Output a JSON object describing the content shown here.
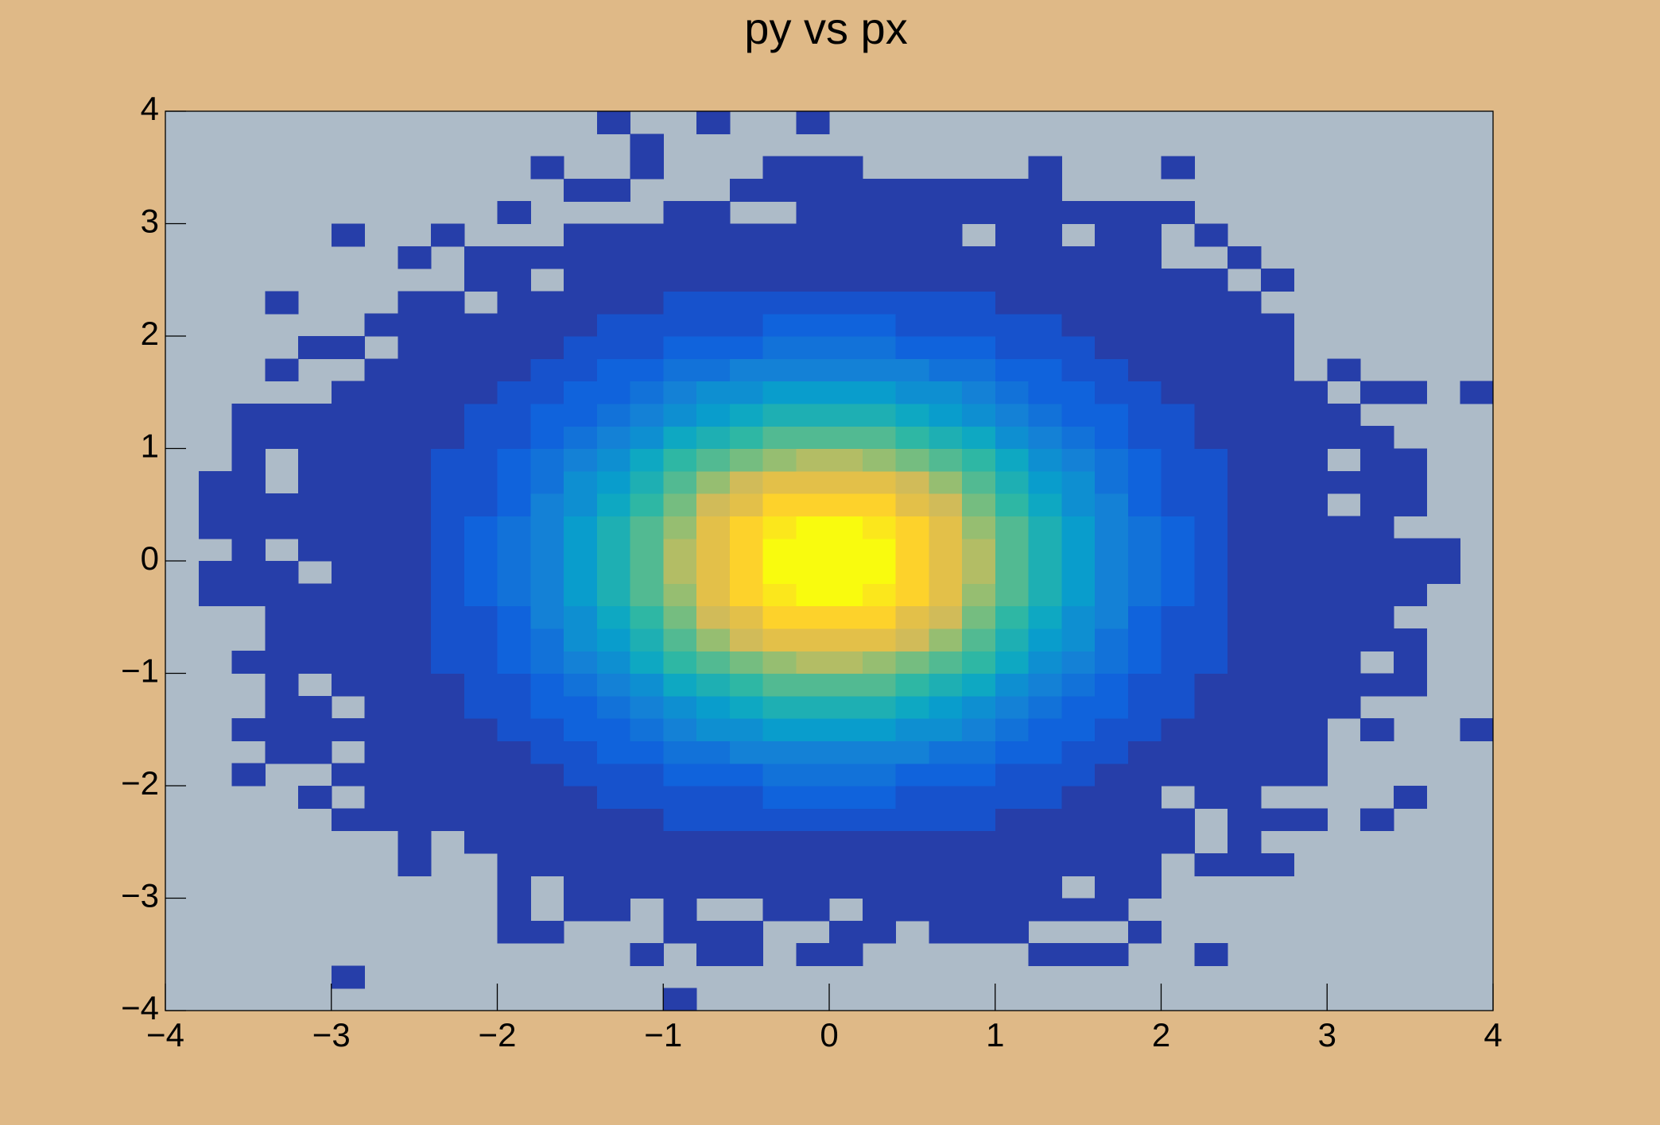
{
  "chart_data": {
    "type": "histogram2d",
    "title": "py vs px",
    "xlim": [
      -4,
      4
    ],
    "ylim": [
      -4,
      4
    ],
    "xticks": [
      {
        "value": -4,
        "label": "−4"
      },
      {
        "value": -3,
        "label": "−3"
      },
      {
        "value": -2,
        "label": "−2"
      },
      {
        "value": -1,
        "label": "−1"
      },
      0,
      1,
      2,
      3,
      4
    ],
    "yticks": [
      {
        "value": -4,
        "label": "−4"
      },
      {
        "value": -3,
        "label": "−3"
      },
      {
        "value": -2,
        "label": "−2"
      },
      {
        "value": -1,
        "label": "−1"
      },
      0,
      1,
      2,
      3,
      4
    ],
    "contours": 20,
    "palette": [
      "#352a87",
      "#0f5cdd",
      "#1481d6",
      "#06a4ca",
      "#2eb7a4",
      "#87bf77",
      "#d1bb59",
      "#fec832",
      "#f9fb0e"
    ],
    "z": [
      [
        0,
        0,
        0,
        0,
        0,
        0,
        0,
        0,
        0,
        0,
        0,
        0,
        0,
        0,
        0,
        1,
        0,
        0,
        0,
        0,
        0,
        0,
        0,
        0,
        0,
        0,
        0,
        0,
        0,
        0,
        0,
        0,
        0,
        0,
        0,
        0,
        0,
        0,
        0,
        0
      ],
      [
        0,
        0,
        0,
        0,
        0,
        1,
        0,
        0,
        0,
        0,
        0,
        0,
        0,
        0,
        0,
        0,
        0,
        0,
        0,
        0,
        0,
        0,
        0,
        0,
        0,
        0,
        0,
        0,
        0,
        0,
        0,
        0,
        0,
        0,
        0,
        0,
        0,
        0,
        0,
        0
      ],
      [
        0,
        0,
        0,
        0,
        0,
        0,
        0,
        0,
        0,
        0,
        0,
        0,
        0,
        0,
        1,
        0,
        1,
        1,
        0,
        1,
        1,
        0,
        0,
        0,
        0,
        0,
        1,
        1,
        1,
        0,
        0,
        1,
        0,
        0,
        0,
        0,
        0,
        0,
        0,
        0
      ],
      [
        0,
        0,
        0,
        0,
        0,
        0,
        0,
        0,
        0,
        0,
        1,
        1,
        0,
        0,
        0,
        1,
        1,
        1,
        0,
        0,
        1,
        1,
        0,
        1,
        1,
        1,
        0,
        0,
        0,
        1,
        0,
        0,
        0,
        0,
        0,
        0,
        0,
        0,
        0,
        0
      ],
      [
        0,
        0,
        0,
        0,
        0,
        0,
        0,
        0,
        0,
        0,
        1,
        0,
        1,
        1,
        0,
        1,
        0,
        0,
        1,
        1,
        0,
        1,
        1,
        1,
        1,
        1,
        1,
        1,
        1,
        0,
        0,
        0,
        0,
        0,
        0,
        0,
        0,
        0,
        0,
        0
      ],
      [
        0,
        0,
        0,
        0,
        0,
        0,
        0,
        0,
        0,
        0,
        1,
        0,
        1,
        1,
        1,
        2,
        2,
        2,
        2,
        2,
        2,
        2,
        2,
        2,
        2,
        1,
        1,
        0,
        1,
        1,
        0,
        0,
        0,
        0,
        0,
        0,
        0,
        0,
        0,
        0
      ],
      [
        0,
        0,
        0,
        0,
        0,
        0,
        0,
        1,
        0,
        0,
        1,
        1,
        1,
        2,
        2,
        3,
        3,
        4,
        4,
        4,
        4,
        4,
        4,
        3,
        3,
        2,
        2,
        1,
        1,
        1,
        0,
        1,
        1,
        1,
        0,
        0,
        0,
        0,
        0,
        0
      ],
      [
        0,
        0,
        0,
        0,
        0,
        0,
        0,
        1,
        0,
        1,
        1,
        2,
        2,
        3,
        4,
        5,
        5,
        6,
        7,
        7,
        7,
        7,
        6,
        5,
        5,
        4,
        3,
        2,
        2,
        1,
        1,
        0,
        1,
        0,
        0,
        0,
        0,
        0,
        0,
        0
      ],
      [
        0,
        0,
        0,
        0,
        0,
        1,
        1,
        1,
        1,
        1,
        2,
        3,
        4,
        5,
        6,
        8,
        9,
        10,
        11,
        11,
        11,
        11,
        10,
        9,
        8,
        6,
        5,
        4,
        3,
        2,
        1,
        0,
        1,
        1,
        1,
        0,
        1,
        0,
        0,
        0
      ],
      [
        0,
        0,
        0,
        0,
        1,
        0,
        1,
        1,
        1,
        2,
        3,
        4,
        6,
        8,
        10,
        12,
        14,
        15,
        17,
        17,
        17,
        17,
        15,
        14,
        12,
        10,
        8,
        6,
        4,
        3,
        0,
        1,
        1,
        0,
        0,
        0,
        0,
        1,
        0,
        0
      ],
      [
        0,
        0,
        1,
        0,
        0,
        1,
        1,
        1,
        2,
        3,
        4,
        6,
        8,
        11,
        14,
        17,
        20,
        23,
        25,
        26,
        26,
        25,
        23,
        20,
        17,
        14,
        11,
        8,
        6,
        4,
        3,
        2,
        1,
        1,
        1,
        0,
        0,
        0,
        0,
        0
      ],
      [
        0,
        0,
        0,
        1,
        1,
        0,
        1,
        2,
        3,
        4,
        6,
        9,
        12,
        16,
        20,
        25,
        29,
        33,
        36,
        37,
        37,
        36,
        33,
        29,
        25,
        20,
        16,
        12,
        9,
        6,
        4,
        3,
        2,
        1,
        1,
        0,
        0,
        0,
        0,
        0
      ],
      [
        0,
        0,
        1,
        1,
        1,
        1,
        1,
        2,
        4,
        6,
        8,
        12,
        17,
        22,
        28,
        34,
        40,
        46,
        49,
        51,
        51,
        49,
        46,
        40,
        34,
        28,
        22,
        17,
        12,
        8,
        6,
        4,
        2,
        1,
        1,
        0,
        1,
        0,
        0,
        1
      ],
      [
        0,
        0,
        0,
        1,
        1,
        0,
        2,
        3,
        5,
        8,
        11,
        16,
        22,
        29,
        37,
        46,
        54,
        60,
        65,
        68,
        68,
        65,
        60,
        54,
        46,
        37,
        29,
        22,
        16,
        11,
        8,
        5,
        3,
        2,
        1,
        1,
        0,
        0,
        0,
        0
      ],
      [
        0,
        0,
        0,
        1,
        0,
        1,
        2,
        4,
        6,
        10,
        14,
        20,
        28,
        37,
        47,
        58,
        68,
        77,
        83,
        86,
        86,
        83,
        77,
        68,
        58,
        47,
        37,
        28,
        20,
        14,
        10,
        6,
        4,
        2,
        1,
        1,
        1,
        1,
        0,
        0
      ],
      [
        0,
        0,
        1,
        1,
        1,
        2,
        3,
        5,
        8,
        12,
        17,
        25,
        34,
        46,
        58,
        71,
        83,
        94,
        101,
        106,
        106,
        101,
        94,
        83,
        71,
        58,
        46,
        34,
        25,
        17,
        12,
        8,
        5,
        3,
        2,
        1,
        0,
        1,
        0,
        0
      ],
      [
        0,
        0,
        0,
        1,
        1,
        2,
        3,
        5,
        9,
        14,
        20,
        29,
        40,
        54,
        68,
        83,
        97,
        110,
        119,
        124,
        124,
        119,
        110,
        97,
        83,
        68,
        54,
        40,
        29,
        20,
        14,
        9,
        5,
        3,
        2,
        1,
        1,
        1,
        0,
        0
      ],
      [
        0,
        0,
        0,
        1,
        1,
        2,
        4,
        6,
        10,
        15,
        23,
        33,
        46,
        60,
        77,
        94,
        110,
        124,
        134,
        140,
        140,
        134,
        124,
        110,
        94,
        77,
        60,
        46,
        33,
        23,
        15,
        10,
        6,
        4,
        2,
        1,
        1,
        0,
        0,
        0
      ],
      [
        0,
        1,
        1,
        1,
        1,
        2,
        4,
        7,
        11,
        17,
        25,
        36,
        49,
        65,
        83,
        101,
        119,
        134,
        145,
        151,
        151,
        145,
        134,
        119,
        101,
        83,
        65,
        49,
        36,
        25,
        17,
        11,
        7,
        4,
        2,
        1,
        1,
        1,
        0,
        0
      ],
      [
        0,
        1,
        1,
        1,
        0,
        2,
        4,
        7,
        11,
        17,
        26,
        37,
        51,
        68,
        86,
        106,
        124,
        140,
        151,
        157,
        157,
        151,
        140,
        124,
        106,
        86,
        68,
        51,
        37,
        26,
        17,
        11,
        7,
        4,
        2,
        1,
        1,
        1,
        1,
        0
      ],
      [
        0,
        0,
        1,
        0,
        1,
        2,
        4,
        7,
        11,
        17,
        26,
        37,
        51,
        68,
        86,
        106,
        124,
        140,
        151,
        157,
        157,
        151,
        140,
        124,
        106,
        86,
        68,
        51,
        37,
        26,
        17,
        11,
        7,
        4,
        2,
        1,
        1,
        1,
        1,
        0
      ],
      [
        0,
        1,
        1,
        1,
        1,
        2,
        4,
        7,
        11,
        17,
        25,
        36,
        49,
        65,
        83,
        101,
        119,
        134,
        145,
        151,
        151,
        145,
        134,
        119,
        101,
        83,
        65,
        49,
        36,
        25,
        17,
        11,
        7,
        4,
        2,
        1,
        1,
        0,
        0,
        0
      ],
      [
        0,
        1,
        1,
        1,
        1,
        2,
        4,
        6,
        10,
        15,
        23,
        33,
        46,
        60,
        77,
        94,
        110,
        124,
        134,
        140,
        140,
        134,
        124,
        110,
        94,
        77,
        60,
        46,
        33,
        23,
        15,
        10,
        6,
        4,
        2,
        0,
        1,
        1,
        0,
        0
      ],
      [
        0,
        1,
        1,
        0,
        1,
        2,
        3,
        5,
        9,
        14,
        20,
        29,
        40,
        54,
        68,
        83,
        97,
        110,
        119,
        124,
        124,
        119,
        110,
        97,
        83,
        68,
        54,
        40,
        29,
        20,
        14,
        9,
        5,
        3,
        2,
        1,
        1,
        1,
        0,
        0
      ],
      [
        0,
        0,
        1,
        0,
        1,
        2,
        3,
        5,
        8,
        12,
        17,
        25,
        34,
        46,
        58,
        71,
        83,
        94,
        101,
        106,
        106,
        101,
        94,
        83,
        71,
        58,
        46,
        34,
        25,
        17,
        12,
        8,
        5,
        3,
        2,
        0,
        1,
        1,
        0,
        0
      ],
      [
        0,
        0,
        1,
        1,
        1,
        1,
        2,
        4,
        6,
        10,
        14,
        20,
        28,
        37,
        47,
        58,
        68,
        77,
        83,
        86,
        86,
        83,
        77,
        68,
        58,
        47,
        37,
        28,
        20,
        14,
        10,
        6,
        4,
        2,
        1,
        1,
        1,
        0,
        0,
        0
      ],
      [
        0,
        0,
        1,
        1,
        1,
        1,
        2,
        3,
        5,
        8,
        11,
        16,
        22,
        29,
        37,
        46,
        54,
        60,
        65,
        68,
        68,
        65,
        60,
        54,
        46,
        37,
        29,
        22,
        16,
        11,
        8,
        5,
        3,
        2,
        1,
        1,
        0,
        0,
        0,
        0
      ],
      [
        0,
        0,
        0,
        0,
        0,
        1,
        1,
        2,
        4,
        6,
        8,
        12,
        17,
        22,
        28,
        34,
        40,
        46,
        49,
        51,
        51,
        49,
        46,
        40,
        34,
        28,
        22,
        17,
        12,
        8,
        6,
        4,
        2,
        1,
        1,
        0,
        1,
        1,
        0,
        1
      ],
      [
        0,
        0,
        0,
        1,
        0,
        0,
        1,
        2,
        3,
        4,
        6,
        9,
        12,
        16,
        20,
        25,
        29,
        33,
        36,
        37,
        37,
        36,
        33,
        29,
        25,
        20,
        16,
        12,
        9,
        6,
        4,
        3,
        2,
        1,
        0,
        1,
        0,
        0,
        0,
        0
      ],
      [
        0,
        0,
        0,
        0,
        1,
        1,
        0,
        1,
        2,
        3,
        4,
        6,
        8,
        11,
        14,
        17,
        20,
        23,
        25,
        26,
        26,
        25,
        23,
        20,
        17,
        14,
        11,
        8,
        6,
        4,
        3,
        2,
        1,
        1,
        0,
        0,
        0,
        0,
        0,
        0
      ],
      [
        0,
        0,
        0,
        0,
        0,
        0,
        1,
        1,
        1,
        2,
        3,
        4,
        6,
        8,
        10,
        12,
        14,
        15,
        17,
        17,
        17,
        17,
        15,
        14,
        12,
        10,
        8,
        6,
        4,
        3,
        2,
        1,
        1,
        1,
        0,
        0,
        0,
        0,
        0,
        0
      ],
      [
        0,
        0,
        0,
        1,
        0,
        0,
        0,
        1,
        1,
        0,
        2,
        3,
        4,
        5,
        6,
        8,
        9,
        10,
        11,
        11,
        11,
        11,
        10,
        9,
        8,
        6,
        5,
        4,
        3,
        2,
        1,
        1,
        1,
        0,
        0,
        0,
        0,
        0,
        0,
        0
      ],
      [
        0,
        0,
        0,
        0,
        0,
        0,
        0,
        0,
        0,
        1,
        1,
        0,
        2,
        3,
        4,
        5,
        5,
        6,
        7,
        7,
        7,
        7,
        6,
        5,
        5,
        4,
        3,
        2,
        2,
        1,
        1,
        1,
        0,
        1,
        0,
        0,
        0,
        0,
        0,
        0
      ],
      [
        0,
        0,
        0,
        0,
        0,
        0,
        0,
        1,
        0,
        1,
        1,
        1,
        1,
        2,
        2,
        3,
        3,
        4,
        4,
        4,
        4,
        4,
        4,
        3,
        3,
        2,
        2,
        1,
        1,
        1,
        0,
        0,
        1,
        0,
        0,
        0,
        0,
        0,
        0,
        0
      ],
      [
        0,
        0,
        0,
        0,
        0,
        1,
        0,
        0,
        1,
        0,
        0,
        0,
        1,
        1,
        1,
        2,
        2,
        2,
        2,
        2,
        2,
        2,
        2,
        2,
        0,
        1,
        1,
        0,
        1,
        1,
        0,
        1,
        0,
        0,
        0,
        0,
        0,
        0,
        0,
        0
      ],
      [
        0,
        0,
        0,
        0,
        0,
        0,
        0,
        0,
        0,
        0,
        1,
        0,
        0,
        0,
        0,
        1,
        1,
        0,
        0,
        1,
        1,
        1,
        1,
        1,
        1,
        1,
        1,
        1,
        1,
        1,
        1,
        0,
        0,
        0,
        0,
        0,
        0,
        0,
        0,
        0
      ],
      [
        0,
        0,
        0,
        0,
        0,
        0,
        0,
        0,
        0,
        0,
        0,
        0,
        1,
        1,
        0,
        0,
        0,
        1,
        1,
        1,
        1,
        1,
        1,
        1,
        1,
        1,
        1,
        0,
        0,
        0,
        0,
        0,
        0,
        0,
        0,
        0,
        0,
        0,
        0,
        0
      ],
      [
        0,
        0,
        0,
        0,
        0,
        0,
        0,
        0,
        0,
        0,
        0,
        1,
        0,
        0,
        1,
        0,
        0,
        0,
        1,
        1,
        1,
        0,
        0,
        0,
        0,
        0,
        1,
        0,
        0,
        0,
        1,
        0,
        0,
        0,
        0,
        0,
        0,
        0,
        0,
        0
      ],
      [
        0,
        0,
        0,
        0,
        0,
        0,
        0,
        0,
        0,
        0,
        0,
        0,
        0,
        0,
        1,
        0,
        0,
        0,
        0,
        0,
        0,
        0,
        0,
        0,
        0,
        0,
        0,
        0,
        0,
        0,
        0,
        0,
        0,
        0,
        0,
        0,
        0,
        0,
        0,
        0
      ],
      [
        0,
        0,
        0,
        0,
        0,
        0,
        0,
        0,
        0,
        0,
        0,
        0,
        0,
        1,
        0,
        0,
        1,
        0,
        0,
        1,
        0,
        0,
        0,
        0,
        0,
        0,
        0,
        0,
        0,
        0,
        0,
        0,
        0,
        0,
        0,
        0,
        0,
        0,
        0,
        0
      ]
    ]
  }
}
